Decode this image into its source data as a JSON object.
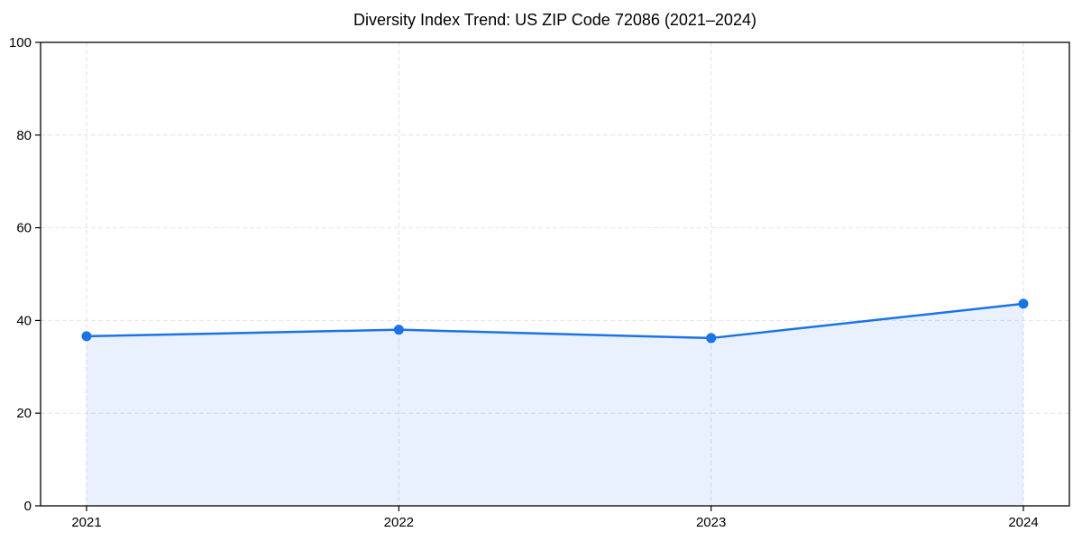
{
  "chart_data": {
    "type": "area",
    "title": "Diversity Index Trend: US ZIP Code 72086 (2021–2024)",
    "categories": [
      "2021",
      "2022",
      "2023",
      "2024"
    ],
    "series": [
      {
        "name": "Diversity Index",
        "values": [
          36.6,
          38.0,
          36.2,
          43.6
        ]
      }
    ],
    "xlabel": "",
    "ylabel": "",
    "ylim": [
      0,
      100
    ],
    "yticks": [
      0,
      20,
      40,
      60,
      80,
      100
    ],
    "grid": true,
    "grid_style": "dashed",
    "legend_position": "none",
    "colors": {
      "line": "#1a73e8",
      "marker": "#1a73e8",
      "fill": "rgba(26,115,232,0.10)",
      "grid": "#e2e2e2",
      "spine": "#000000",
      "text": "#000000",
      "background": "#ffffff"
    }
  }
}
